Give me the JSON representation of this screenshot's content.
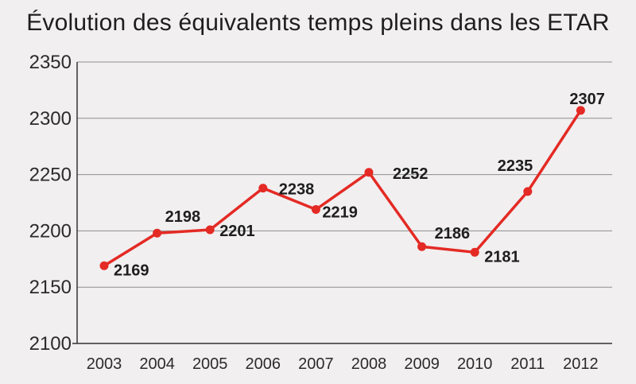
{
  "chart_data": {
    "type": "line",
    "title": "Évolution des équivalents temps pleins dans les ETAR",
    "xlabel": "",
    "ylabel": "",
    "categories": [
      "2003",
      "2004",
      "2005",
      "2006",
      "2007",
      "2008",
      "2009",
      "2010",
      "2011",
      "2012"
    ],
    "series": [
      {
        "values": [
          2169,
          2198,
          2201,
          2238,
          2219,
          2252,
          2186,
          2181,
          2235,
          2307
        ]
      }
    ],
    "ylim": [
      2100,
      2350
    ],
    "yticks": [
      "2100",
      "2150",
      "2200",
      "2250",
      "2300",
      "2350"
    ],
    "grid": true,
    "legend": "none",
    "line_color": "#e42a24"
  }
}
